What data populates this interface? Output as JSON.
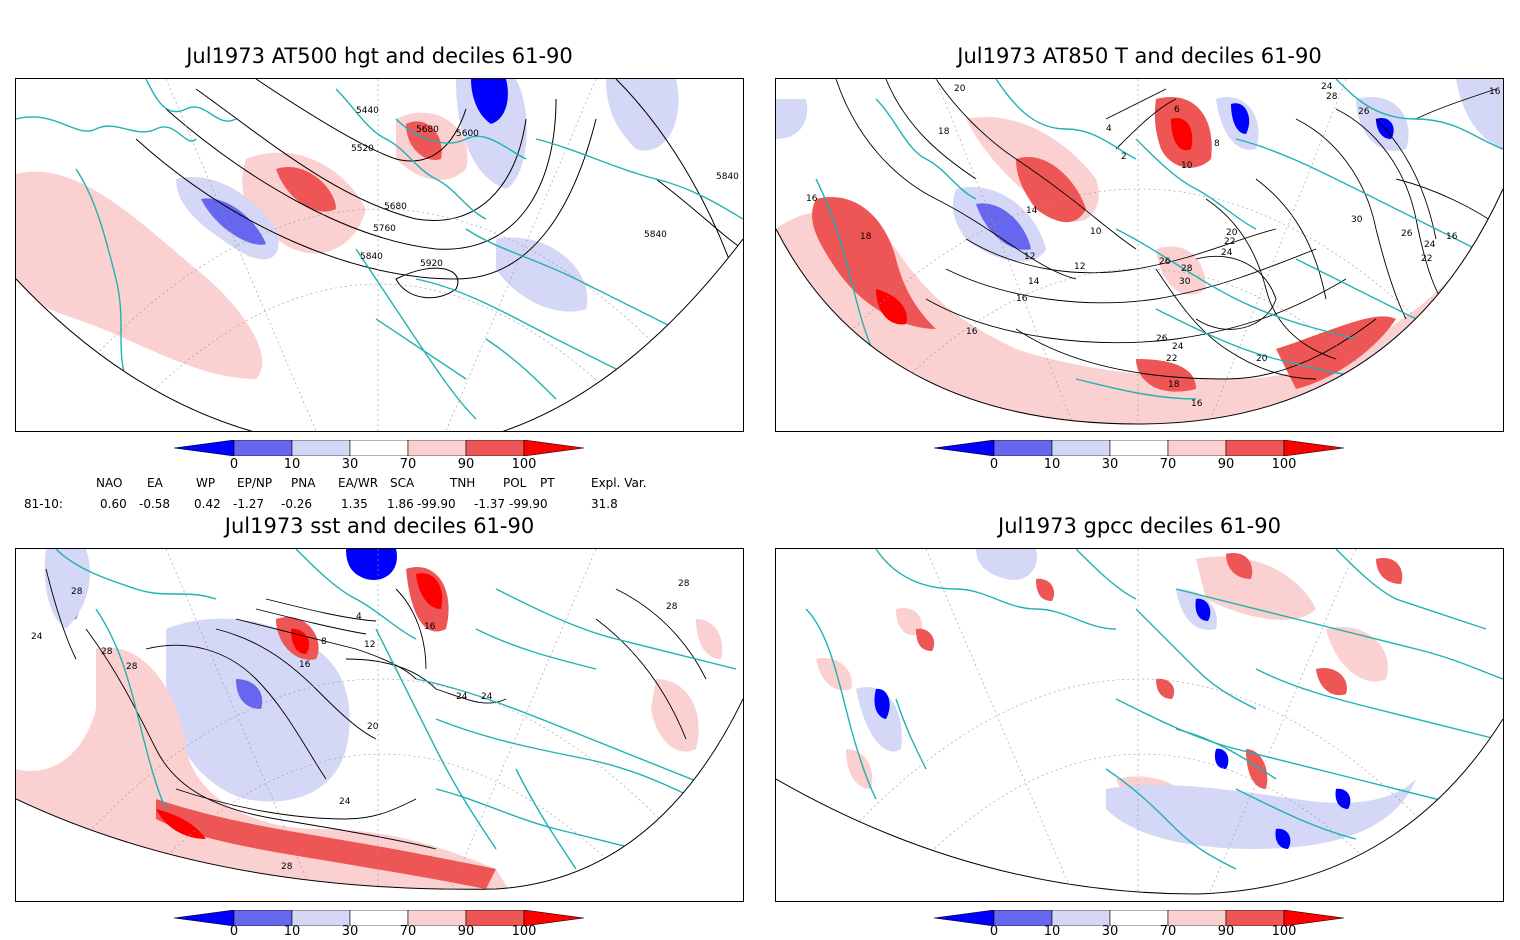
{
  "panels": {
    "p1": {
      "title": "Jul1973 AT500 hgt and deciles 61-90",
      "labels": [
        "5440",
        "5520",
        "5680",
        "5600",
        "5680",
        "5760",
        "5840",
        "5920",
        "5840",
        "5840"
      ]
    },
    "p2": {
      "title": "Jul1973 AT850 T and deciles 61-90",
      "labels": [
        "20",
        "18",
        "16",
        "14",
        "12",
        "10",
        "4",
        "2",
        "6",
        "8",
        "10",
        "16",
        "14",
        "12",
        "18",
        "16",
        "20",
        "22",
        "24",
        "26",
        "28",
        "30",
        "26",
        "24",
        "22",
        "20",
        "18",
        "16",
        "16",
        "22",
        "24",
        "26",
        "28",
        "30",
        "26",
        "24",
        "22",
        "16"
      ]
    },
    "p3": {
      "title": "Jul1973 sst and deciles 61-90",
      "labels": [
        "24",
        "28",
        "28",
        "28",
        "28",
        "16",
        "12",
        "8",
        "4",
        "20",
        "24",
        "24",
        "24",
        "16",
        "28",
        "28"
      ]
    },
    "p4": {
      "title": "Jul1973 gpcc deciles 61-90"
    }
  },
  "colorbar": {
    "ticks": [
      "0",
      "10",
      "30",
      "70",
      "90",
      "100"
    ],
    "colors": [
      "#0000ff",
      "#6666ee",
      "#d4d7f5",
      "#ffffff",
      "#fbd0d0",
      "#ee5555",
      "#ff0000"
    ]
  },
  "indices": {
    "headers": [
      "NAO",
      "EA",
      "WP",
      "EP/NP",
      "PNA",
      "EA/WR",
      "SCA",
      "TNH",
      "POL",
      "PT",
      "Expl. Var."
    ],
    "row_label": "81-10:",
    "values": [
      "0.60",
      "-0.58",
      "0.42",
      "-1.27",
      "-0.26",
      "1.35",
      "1.86",
      "-99.90",
      "-1.37",
      "-99.90",
      "31.8"
    ]
  },
  "colors": {
    "coast": "#20b2b2",
    "frame": "#000000",
    "grid": "#999999"
  }
}
